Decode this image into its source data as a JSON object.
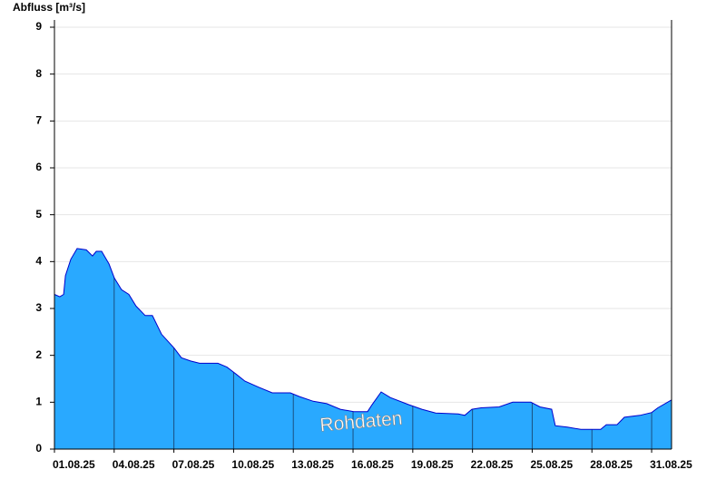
{
  "chart_data": {
    "type": "area",
    "y_label": "Abfluss [m³/s]",
    "watermark": "Rohdaten",
    "color": "#29a9ff",
    "line_color": "#0000cc",
    "grid": true,
    "x": [
      0,
      0.27,
      0.46,
      0.55,
      0.82,
      1.14,
      1.6,
      1.91,
      2.1,
      2.37,
      2.74,
      3.01,
      3.37,
      3.74,
      4.1,
      4.56,
      4.92,
      5.38,
      6.02,
      6.38,
      6.84,
      7.29,
      8.21,
      8.66,
      9.12,
      9.57,
      10.26,
      10.94,
      11.4,
      11.85,
      12.31,
      13.0,
      13.68,
      14.36,
      15.04,
      15.73,
      15.96,
      16.41,
      16.87,
      17.78,
      18.46,
      19.15,
      20.29,
      20.61,
      20.97,
      21.43,
      22.34,
      23.02,
      23.93,
      24.39,
      24.98,
      25.16,
      25.76,
      26.44,
      27.44,
      27.72,
      28.26,
      28.63,
      29.41,
      30.0,
      30.31,
      31.0
    ],
    "values": [
      3.3,
      3.25,
      3.3,
      3.7,
      4.05,
      4.28,
      4.25,
      4.12,
      4.22,
      4.22,
      3.95,
      3.65,
      3.4,
      3.3,
      3.05,
      2.85,
      2.85,
      2.45,
      2.15,
      1.95,
      1.88,
      1.83,
      1.83,
      1.75,
      1.6,
      1.45,
      1.32,
      1.2,
      1.2,
      1.2,
      1.12,
      1.02,
      0.97,
      0.85,
      0.8,
      0.8,
      0.95,
      1.22,
      1.1,
      0.95,
      0.85,
      0.77,
      0.75,
      0.72,
      0.85,
      0.88,
      0.9,
      1.0,
      1.0,
      0.9,
      0.85,
      0.5,
      0.47,
      0.42,
      0.42,
      0.52,
      0.52,
      0.68,
      0.72,
      0.78,
      0.88,
      1.05
    ],
    "xlim": [
      0,
      31
    ],
    "xticks": [
      {
        "value": 0,
        "label": "01.08.25"
      },
      {
        "value": 3,
        "label": "04.08.25"
      },
      {
        "value": 6,
        "label": "07.08.25"
      },
      {
        "value": 9,
        "label": "10.08.25"
      },
      {
        "value": 12,
        "label": "13.08.25"
      },
      {
        "value": 15,
        "label": "16.08.25"
      },
      {
        "value": 18,
        "label": "19.08.25"
      },
      {
        "value": 21,
        "label": "22.08.25"
      },
      {
        "value": 24,
        "label": "25.08.25"
      },
      {
        "value": 27,
        "label": "28.08.25"
      },
      {
        "value": 30,
        "label": "31.08.25"
      }
    ],
    "ylim": [
      0,
      9
    ],
    "yticks": [
      0,
      1,
      2,
      3,
      4,
      5,
      6,
      7,
      8,
      9
    ]
  }
}
